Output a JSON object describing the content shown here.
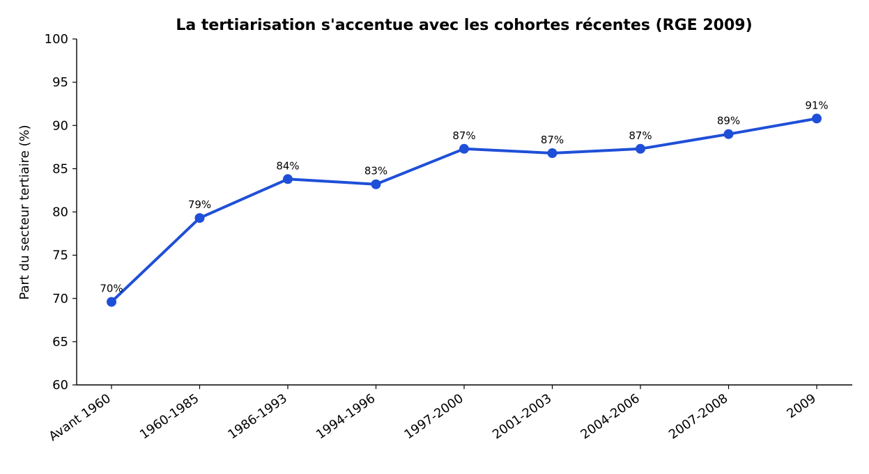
{
  "chart_data": {
    "type": "line",
    "title": "La tertiarisation s'accentue avec les cohortes récentes (RGE 2009)",
    "xlabel": "",
    "ylabel": "Part du secteur tertiaire (%)",
    "categories": [
      "Avant 1960",
      "1960-1985",
      "1986-1993",
      "1994-1996",
      "1997-2000",
      "2001-2003",
      "2004-2006",
      "2007-2008",
      "2009"
    ],
    "series": [
      {
        "values": [
          69.6,
          79.3,
          83.8,
          83.2,
          87.3,
          86.8,
          87.3,
          89.0,
          90.8
        ],
        "data_labels": [
          "70%",
          "79%",
          "84%",
          "83%",
          "87%",
          "87%",
          "87%",
          "89%",
          "91%"
        ],
        "color": "#1f4fd8"
      }
    ],
    "ylim": [
      60,
      100
    ],
    "yticks": [
      "60",
      "65",
      "70",
      "75",
      "80",
      "85",
      "90",
      "95",
      "100"
    ],
    "grid": false,
    "legend": "none"
  }
}
